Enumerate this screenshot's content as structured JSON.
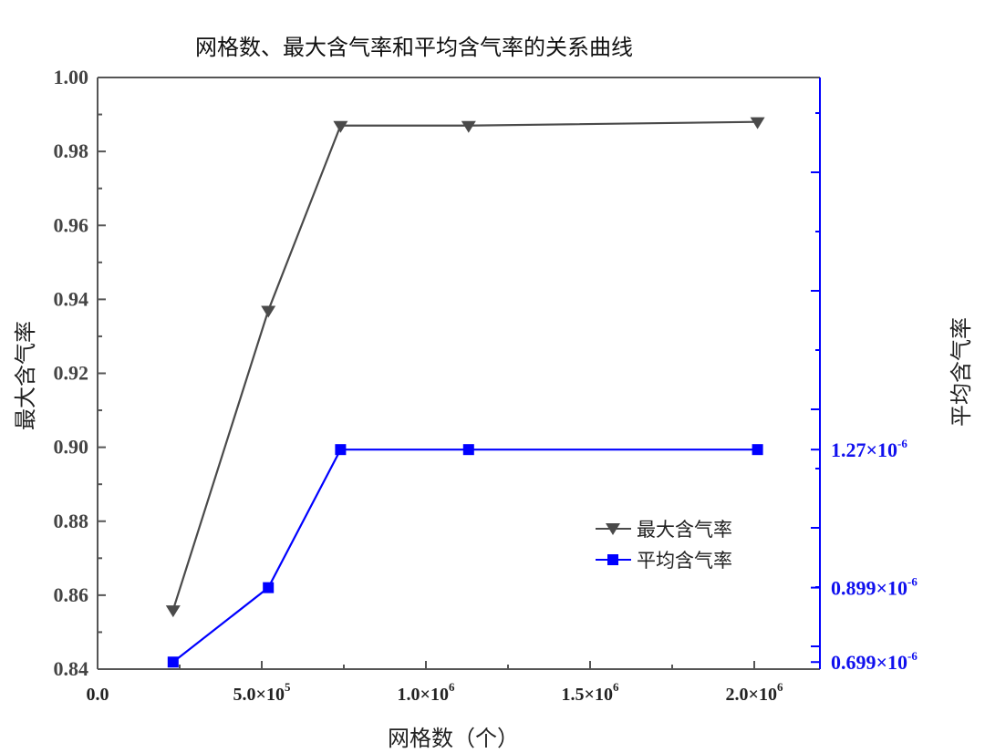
{
  "chart_data": {
    "type": "line",
    "title": "网格数、最大含气率和平均含气率的关系曲线",
    "xlabel": "网格数（个）",
    "ylabel_left": "最大含气率",
    "ylabel_right": "平均含气率",
    "x_ticks": [
      {
        "value": 0,
        "base": "0.0",
        "exp": ""
      },
      {
        "value": 500000,
        "base": "5.0×10",
        "exp": "5"
      },
      {
        "value": 1000000,
        "base": "1.0×10",
        "exp": "6"
      },
      {
        "value": 1500000,
        "base": "1.5×10",
        "exp": "6"
      },
      {
        "value": 2000000,
        "base": "2.0×10",
        "exp": "6"
      }
    ],
    "xlim": [
      0,
      2200000
    ],
    "ylim_left": [
      0.84,
      1.0
    ],
    "y_ticks_left": [
      "0.84",
      "0.86",
      "0.88",
      "0.90",
      "0.92",
      "0.94",
      "0.96",
      "0.98",
      "1.00"
    ],
    "ylim_right": [
      6.8e-07,
      2.27e-06
    ],
    "y_ticks_right": [
      {
        "value": 6.99e-07,
        "base": "0.699×10",
        "exp": "-6"
      },
      {
        "value": 8.99e-07,
        "base": "0.899×10",
        "exp": "-6"
      },
      {
        "value": 1.27e-06,
        "base": "1.27×10",
        "exp": "-6"
      }
    ],
    "series": [
      {
        "name": "最大含气率",
        "axis": "left",
        "color": "#4a4a4a",
        "marker": "triangle-down",
        "x": [
          230000,
          520000,
          740000,
          1130000,
          2010000
        ],
        "y": [
          0.856,
          0.937,
          0.987,
          0.987,
          0.988
        ]
      },
      {
        "name": "平均含气率",
        "axis": "right",
        "color": "#0000ff",
        "marker": "square",
        "x": [
          230000,
          520000,
          740000,
          1130000,
          2010000
        ],
        "y": [
          6.99e-07,
          8.99e-07,
          1.27e-06,
          1.27e-06,
          1.27e-06
        ]
      }
    ],
    "legend": {
      "placement": "lower-right"
    },
    "grid": false
  }
}
